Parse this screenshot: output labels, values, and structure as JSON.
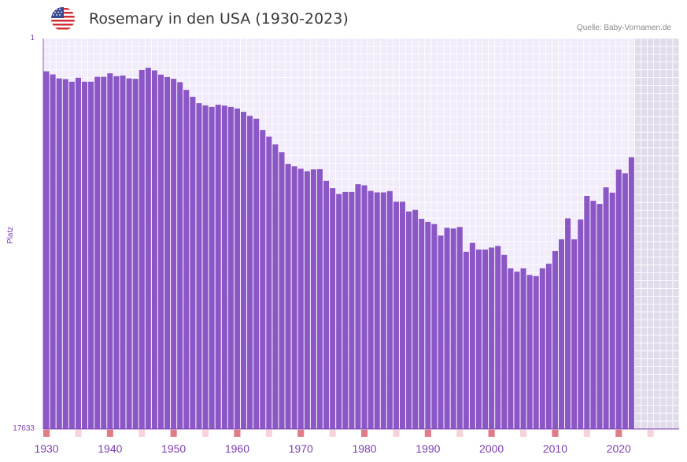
{
  "header": {
    "title": "Rosemary in den USA (1930-2023)",
    "source": "Quelle: Baby-Vornamen.de",
    "flag_icon": "us-flag-icon"
  },
  "colors": {
    "bar": "#8b57c6",
    "plot_bg": "#f1ebfa",
    "grid": "#ffffff",
    "future_bg": "#e2dcea",
    "axis_text": "#7b3fb0",
    "marker_strong": "#e17b86",
    "marker_light": "#f6d3d8"
  },
  "chart_data": {
    "type": "bar",
    "title": "Rosemary in den USA (1930-2023)",
    "ylabel": "Platz",
    "ylim_labels": [
      "1",
      "17633"
    ],
    "ylim": [
      1,
      17633
    ],
    "y_inverted": true,
    "x_range": [
      1930,
      2029
    ],
    "x_ticks": [
      1930,
      1940,
      1950,
      1960,
      1970,
      1980,
      1990,
      2000,
      2010,
      2020
    ],
    "years": [
      1930,
      1931,
      1932,
      1933,
      1934,
      1935,
      1936,
      1937,
      1938,
      1939,
      1940,
      1941,
      1942,
      1943,
      1944,
      1945,
      1946,
      1947,
      1948,
      1949,
      1950,
      1951,
      1952,
      1953,
      1954,
      1955,
      1956,
      1957,
      1958,
      1959,
      1960,
      1961,
      1962,
      1963,
      1964,
      1965,
      1966,
      1967,
      1968,
      1969,
      1970,
      1971,
      1972,
      1973,
      1974,
      1975,
      1976,
      1977,
      1978,
      1979,
      1980,
      1981,
      1982,
      1983,
      1984,
      1985,
      1986,
      1987,
      1988,
      1989,
      1990,
      1991,
      1992,
      1993,
      1994,
      1995,
      1996,
      1997,
      1998,
      1999,
      2000,
      2001,
      2002,
      2003,
      2004,
      2005,
      2006,
      2007,
      2008,
      2009,
      2010,
      2011,
      2012,
      2013,
      2014,
      2015,
      2016,
      2017,
      2018,
      2019,
      2020,
      2021,
      2022
    ],
    "ranks": [
      1480,
      1620,
      1800,
      1830,
      1950,
      1770,
      1950,
      1950,
      1730,
      1730,
      1570,
      1700,
      1670,
      1800,
      1820,
      1420,
      1320,
      1440,
      1630,
      1740,
      1820,
      1970,
      2320,
      2630,
      2920,
      3020,
      3090,
      2990,
      3030,
      3090,
      3160,
      3310,
      3490,
      3620,
      4130,
      4430,
      4780,
      5130,
      5660,
      5770,
      5880,
      5990,
      5910,
      5900,
      6430,
      6760,
      7020,
      6930,
      6930,
      6580,
      6630,
      6880,
      6950,
      6950,
      6890,
      7370,
      7370,
      7810,
      7740,
      8140,
      8280,
      8380,
      8900,
      8550,
      8580,
      8510,
      9630,
      9230,
      9530,
      9530,
      9440,
      9370,
      9770,
      10380,
      10530,
      10380,
      10680,
      10730,
      10380,
      10170,
      9600,
      9070,
      8120,
      9070,
      8170,
      7110,
      7330,
      7470,
      6720,
      6960,
      5920,
      6090,
      5360
    ],
    "markers": [
      {
        "year": 1930,
        "strength": "strong"
      },
      {
        "year": 1935,
        "strength": "light"
      },
      {
        "year": 1940,
        "strength": "strong"
      },
      {
        "year": 1945,
        "strength": "light"
      },
      {
        "year": 1950,
        "strength": "strong"
      },
      {
        "year": 1955,
        "strength": "light"
      },
      {
        "year": 1960,
        "strength": "strong"
      },
      {
        "year": 1965,
        "strength": "light"
      },
      {
        "year": 1970,
        "strength": "strong"
      },
      {
        "year": 1975,
        "strength": "light"
      },
      {
        "year": 1980,
        "strength": "strong"
      },
      {
        "year": 1985,
        "strength": "light"
      },
      {
        "year": 1990,
        "strength": "strong"
      },
      {
        "year": 1995,
        "strength": "light"
      },
      {
        "year": 2000,
        "strength": "strong"
      },
      {
        "year": 2005,
        "strength": "light"
      },
      {
        "year": 2010,
        "strength": "strong"
      },
      {
        "year": 2015,
        "strength": "light"
      },
      {
        "year": 2020,
        "strength": "strong"
      },
      {
        "year": 2025,
        "strength": "light"
      },
      {
        "year": 2030,
        "strength": "strong"
      }
    ],
    "future_from_year": 2023
  }
}
